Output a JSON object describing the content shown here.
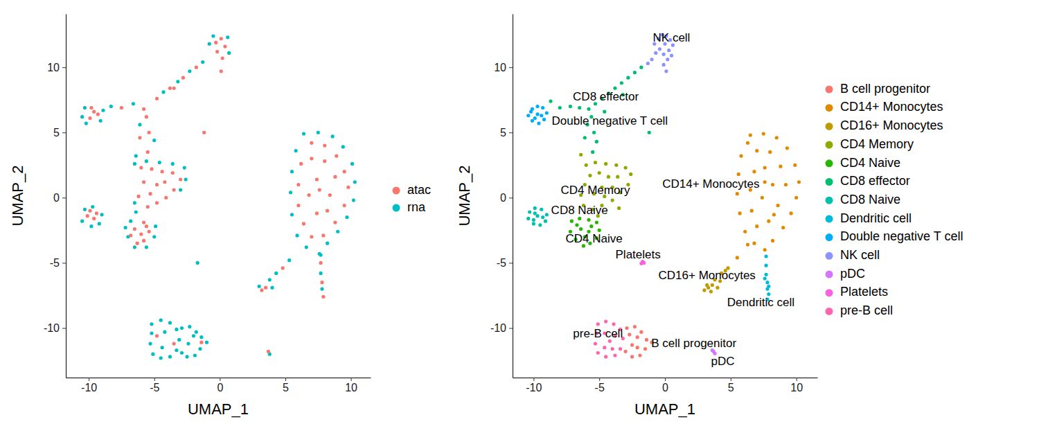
{
  "chart_data": [
    {
      "type": "scatter",
      "xlabel": "UMAP_1",
      "ylabel": "UMAP_2",
      "xlim": [
        -11.75,
        11.5
      ],
      "ylim": [
        -13.8,
        14.1
      ],
      "xticks": [
        -10,
        -5,
        0,
        5,
        10
      ],
      "yticks": [
        -10,
        -5,
        0,
        5,
        10
      ],
      "legend": "right",
      "series": [
        {
          "name": "atac",
          "color": "#F8766D",
          "x": [
            -0.3,
            0.1,
            0.4,
            -0.2,
            0.2,
            0.1,
            -1.8,
            -2.8,
            -3.8,
            -4.8,
            -5.8,
            -5.6,
            -5.4,
            -5.5,
            -6.1,
            -3.5,
            -9.8,
            -9.3,
            -9.9,
            -9.6,
            -7.5,
            -6.0,
            -5.2,
            -4.4,
            -3.6,
            -3.0,
            -3.5,
            -4.1,
            -4.8,
            -5.5,
            -6.2,
            -5.8,
            -4.8,
            -4.2,
            -5.3,
            -9.9,
            -9.4,
            -9.6,
            -10.1,
            -5.8,
            -5.4,
            -5.8,
            -6.3,
            -6.0,
            -5.6,
            -6.5,
            -6.8,
            7.0,
            8.0,
            8.9,
            9.5,
            9.8,
            9.5,
            8.8,
            7.9,
            7.0,
            6.4,
            6.0,
            6.0,
            6.2,
            7.0,
            8.0,
            8.8,
            8.4,
            7.4,
            6.8,
            7.4,
            8.2,
            7.6,
            4.8,
            3.5,
            3.2,
            7.7,
            7.8,
            7.9,
            3.7,
            -4.8,
            -3.5,
            -1.4,
            -1.2
          ],
          "y": [
            11.9,
            12.2,
            11.6,
            11.2,
            10.7,
            9.7,
            10.0,
            9.2,
            8.4,
            7.6,
            6.8,
            6.2,
            5.0,
            3.5,
            4.6,
            8.4,
            6.9,
            6.4,
            6.1,
            6.6,
            6.9,
            2.3,
            2.2,
            2.0,
            1.9,
            1.4,
            0.6,
            0.0,
            -0.4,
            -0.7,
            0.1,
            1.2,
            1.0,
            1.2,
            0.3,
            -1.0,
            -1.2,
            -1.6,
            -1.4,
            -1.9,
            -2.6,
            -3.3,
            -3.5,
            -2.8,
            -2.2,
            -2.4,
            -2.9,
            4.2,
            4.0,
            3.2,
            2.0,
            0.8,
            -0.6,
            -1.9,
            -2.9,
            -3.0,
            -2.0,
            -0.6,
            1.0,
            2.6,
            3.0,
            2.8,
            1.6,
            0.2,
            -1.2,
            0.2,
            1.4,
            -1.0,
            0.6,
            -5.4,
            -6.9,
            -7.1,
            -5.0,
            -6.5,
            -7.6,
            -11.8,
            -10.6,
            -11.2,
            -11.1,
            5.0
          ]
        },
        {
          "name": "rna",
          "color": "#00BFC4",
          "x": [
            -0.8,
            -0.5,
            0.6,
            0.7,
            -1.3,
            -2.3,
            -3.2,
            -4.3,
            -6.6,
            -8.3,
            -10.3,
            -10.5,
            -10.2,
            -9.1,
            -8.9,
            -6.1,
            -5.0,
            -6.4,
            -6.5,
            -5.6,
            -4.6,
            -3.6,
            -2.7,
            -2.6,
            -3.0,
            -6.5,
            -6.4,
            -6.8,
            -7.2,
            -7.0,
            -6.5,
            -5.6,
            -5.0,
            -4.9,
            -10.5,
            -10.3,
            -9.7,
            -9.0,
            -9.2,
            -9.8,
            6.4,
            7.5,
            8.6,
            9.4,
            10.1,
            10.3,
            10.2,
            9.7,
            9.0,
            8.2,
            7.6,
            6.6,
            5.9,
            5.5,
            5.4,
            5.5,
            5.8,
            4.3,
            3.8,
            3.0,
            4.0,
            5.3,
            7.7,
            7.7,
            7.8,
            -1.7,
            3.8,
            -5.2,
            -4.5,
            -3.8,
            -3.3,
            -3.1,
            -3.3,
            -3.8,
            -4.5,
            -5.1,
            -5.3,
            -5.2,
            -4.4,
            -4.2,
            -2.9,
            -2.3,
            -1.8,
            -1.4,
            -1.5,
            -1.9,
            -2.5,
            -2.9,
            -2.4,
            -2.0,
            -1.0
          ],
          "y": [
            11.8,
            12.4,
            12.3,
            11.1,
            10.4,
            9.7,
            8.9,
            8.1,
            7.2,
            7.0,
            6.9,
            6.2,
            5.7,
            5.9,
            6.7,
            5.6,
            4.4,
            3.2,
            2.6,
            2.8,
            2.7,
            2.6,
            2.3,
            1.4,
            0.6,
            -0.4,
            -1.1,
            -1.8,
            -2.3,
            -3.0,
            -3.8,
            -3.8,
            -3.0,
            -2.2,
            -1.8,
            -0.9,
            -0.7,
            -1.3,
            -2.0,
            -2.2,
            4.9,
            5.0,
            4.7,
            3.9,
            2.6,
            1.2,
            -0.2,
            -1.5,
            -2.6,
            -3.5,
            -4.3,
            -3.8,
            -2.9,
            -1.3,
            0.4,
            2.0,
            3.6,
            -5.8,
            -6.3,
            -6.8,
            -6.9,
            -4.8,
            -4.4,
            -5.8,
            -7.0,
            -5.0,
            -12.0,
            -9.7,
            -9.4,
            -9.6,
            -10.1,
            -10.9,
            -11.7,
            -12.2,
            -12.3,
            -12.0,
            -11.2,
            -10.4,
            -11.5,
            -10.3,
            -10.0,
            -9.9,
            -10.3,
            -10.7,
            -11.6,
            -12.1,
            -12.2,
            -11.9,
            -11.2,
            -10.6,
            -11.1
          ]
        }
      ]
    },
    {
      "type": "scatter",
      "xlabel": "UMAP_1",
      "ylabel": "UMAP_2",
      "xlim": [
        -11.6,
        11.6
      ],
      "ylim": [
        -13.8,
        14.1
      ],
      "xticks": [
        -10,
        -5,
        0,
        5,
        10
      ],
      "yticks": [
        -10,
        -5,
        0,
        5,
        10
      ],
      "legend": "right",
      "series": [
        {
          "name": "B cell progenitor",
          "color": "#F8766D",
          "x": [
            -2.9,
            -2.3,
            -1.8,
            -1.4,
            -1.5,
            -1.9,
            -2.5,
            -3.0,
            -2.5,
            -2.1,
            -2.1,
            -2.7,
            -1.0
          ],
          "y": [
            -10.0,
            -9.9,
            -10.3,
            -10.9,
            -11.6,
            -12.1,
            -12.2,
            -11.8,
            -11.3,
            -10.7,
            -11.5,
            -10.5,
            -11.1
          ]
        },
        {
          "name": "CD14+ Monocytes",
          "color": "#E18A00",
          "x": [
            6.5,
            7.5,
            8.5,
            9.3,
            9.9,
            10.2,
            10.0,
            9.6,
            9.0,
            8.2,
            7.6,
            6.8,
            6.1,
            5.7,
            5.5,
            5.6,
            5.8,
            6.3,
            7.0,
            8.0,
            8.8,
            9.2,
            8.6,
            7.9,
            7.0,
            6.6,
            6.5,
            6.8,
            7.6,
            8.2,
            7.4,
            7.6,
            8.3,
            6.3,
            5.5
          ],
          "y": [
            4.8,
            4.9,
            4.6,
            3.8,
            2.5,
            1.2,
            0.0,
            -1.2,
            -2.3,
            -3.3,
            -4.0,
            -3.5,
            -2.6,
            -1.2,
            0.3,
            1.8,
            3.2,
            4.2,
            3.6,
            3.5,
            2.4,
            1.0,
            -0.6,
            -1.8,
            -2.2,
            -1.0,
            0.6,
            2.0,
            2.3,
            1.0,
            0.0,
            1.2,
            -1.3,
            -3.6,
            -4.6
          ]
        },
        {
          "name": "CD16+ Monocytes",
          "color": "#BE9C00",
          "x": [
            4.8,
            4.3,
            3.8,
            3.2,
            3.0,
            3.5,
            4.0,
            3.6,
            4.6,
            3.3,
            4.2
          ],
          "y": [
            -5.4,
            -5.8,
            -6.3,
            -6.7,
            -7.1,
            -7.2,
            -6.9,
            -6.7,
            -5.6,
            -6.9,
            -6.4
          ]
        },
        {
          "name": "CD4 Memory",
          "color": "#8CAB00",
          "x": [
            -6.0,
            -5.3,
            -4.5,
            -3.7,
            -3.0,
            -2.6,
            -2.8,
            -3.4,
            -4.0,
            -4.8,
            -5.5,
            -6.2,
            -6.4,
            -6.1,
            -5.7,
            -5.0,
            -4.3,
            -3.6,
            -4.0,
            -4.8,
            -5.4,
            -4.6,
            -3.5,
            -5.1,
            -6.4
          ],
          "y": [
            2.5,
            2.7,
            2.6,
            2.5,
            2.3,
            1.8,
            1.0,
            0.4,
            -0.2,
            -0.6,
            -0.9,
            -0.6,
            0.2,
            1.0,
            1.7,
            1.9,
            1.6,
            1.6,
            0.8,
            0.8,
            0.3,
            0.1,
            -0.8,
            -1.4,
            3.3
          ]
        },
        {
          "name": "CD4 Naive",
          "color": "#24B700",
          "x": [
            -7.1,
            -6.5,
            -5.8,
            -5.2,
            -5.0,
            -5.2,
            -5.7,
            -6.2,
            -6.8,
            -7.2,
            -6.4,
            -5.8,
            -6.1,
            -6.7,
            -5.6
          ],
          "y": [
            -1.8,
            -1.6,
            -1.7,
            -1.9,
            -2.5,
            -3.1,
            -3.5,
            -3.7,
            -3.2,
            -2.6,
            -2.4,
            -2.6,
            -3.0,
            -2.1,
            -2.2
          ]
        },
        {
          "name": "CD8 effector",
          "color": "#00BE70",
          "x": [
            -1.8,
            -2.3,
            -2.8,
            -3.3,
            -3.8,
            -4.3,
            -4.8,
            -5.3,
            -5.8,
            -6.5,
            -7.2,
            -8.0,
            -5.6,
            -5.9,
            -5.4,
            -5.2,
            -5.5,
            -6.1,
            -4.6,
            -3.2,
            -1.2,
            -8.7
          ],
          "y": [
            10.0,
            9.6,
            9.2,
            8.8,
            8.4,
            8.0,
            7.6,
            7.2,
            6.8,
            6.9,
            7.0,
            6.9,
            6.2,
            5.6,
            5.0,
            4.3,
            3.5,
            4.6,
            6.6,
            7.9,
            5.0,
            7.4
          ]
        },
        {
          "name": "CD8 Naive",
          "color": "#00C1AB",
          "x": [
            -10.3,
            -9.9,
            -9.4,
            -9.0,
            -9.1,
            -9.5,
            -10.0,
            -10.4,
            -9.7,
            -9.3,
            -9.9,
            -10.0
          ],
          "y": [
            -1.1,
            -0.8,
            -0.9,
            -1.3,
            -1.8,
            -2.1,
            -2.0,
            -1.6,
            -1.4,
            -1.5,
            -1.2,
            -1.7
          ]
        },
        {
          "name": "Dendritic cell",
          "color": "#00BBDA",
          "x": [
            7.7,
            7.7,
            7.7,
            7.8,
            7.8,
            7.9,
            7.8,
            7.6,
            7.9
          ],
          "y": [
            -4.5,
            -5.2,
            -5.9,
            -6.5,
            -7.0,
            -7.4,
            -7.8,
            -6.2,
            -6.8
          ]
        },
        {
          "name": "Double negative T cell",
          "color": "#00ACFC",
          "x": [
            -10.1,
            -9.7,
            -9.3,
            -9.0,
            -9.2,
            -9.6,
            -10.1,
            -10.4,
            -9.7,
            -9.4,
            -9.9,
            -10.2
          ],
          "y": [
            6.8,
            7.0,
            6.9,
            6.5,
            6.0,
            5.7,
            5.9,
            6.3,
            6.4,
            6.3,
            6.1,
            6.6
          ]
        },
        {
          "name": "NK cell",
          "color": "#8B93FF",
          "x": [
            -0.8,
            -0.5,
            -0.2,
            0.1,
            0.4,
            0.6,
            0.3,
            -0.1,
            -0.4,
            0.0,
            -0.7,
            0.5,
            0.2,
            -0.1,
            0.1,
            -1.3,
            -1.0
          ],
          "y": [
            11.8,
            12.2,
            12.5,
            12.4,
            12.1,
            11.7,
            11.3,
            11.0,
            11.4,
            11.8,
            11.1,
            10.9,
            10.6,
            10.2,
            9.7,
            10.3,
            10.6
          ]
        },
        {
          "name": "pDC",
          "color": "#D575FE",
          "x": [
            3.6,
            3.7,
            3.8
          ],
          "y": [
            -11.7,
            -11.8,
            -11.95
          ]
        },
        {
          "name": "Platelets",
          "color": "#F962DD",
          "x": [
            -1.7,
            -1.6,
            -1.8
          ],
          "y": [
            -4.9,
            -5.0,
            -5.05
          ]
        },
        {
          "name": "pre-B cell",
          "color": "#FF65AC",
          "x": [
            -5.1,
            -4.5,
            -3.9,
            -3.4,
            -3.2,
            -3.4,
            -3.8,
            -4.5,
            -5.1,
            -5.3,
            -5.2,
            -4.6,
            -4.2,
            -4.6,
            -3.8,
            -4.0
          ],
          "y": [
            -9.7,
            -9.5,
            -9.7,
            -10.1,
            -10.8,
            -11.6,
            -12.1,
            -12.2,
            -11.9,
            -11.2,
            -10.4,
            -10.4,
            -11.0,
            -11.5,
            -10.6,
            -11.6
          ]
        }
      ],
      "annotations": [
        {
          "text": "NK cell",
          "x": 0.5,
          "y": 12.2
        },
        {
          "text": "CD8 effector",
          "x": -4.5,
          "y": 7.7
        },
        {
          "text": "Double negative T cell",
          "x": -4.2,
          "y": 5.85
        },
        {
          "text": "CD14+ Monocytes",
          "x": 3.5,
          "y": 1.0
        },
        {
          "text": "CD4 Memory",
          "x": -5.3,
          "y": 0.5
        },
        {
          "text": "CD8 Naive",
          "x": -6.5,
          "y": -1.0
        },
        {
          "text": "CD4 Naive",
          "x": -5.4,
          "y": -3.2
        },
        {
          "text": "Platelets",
          "x": -2.05,
          "y": -4.4
        },
        {
          "text": "CD16+ Monocytes",
          "x": 3.2,
          "y": -6.0
        },
        {
          "text": "Dendritic cell",
          "x": 7.3,
          "y": -8.1
        },
        {
          "text": "pre-B cell",
          "x": -5.1,
          "y": -10.5
        },
        {
          "text": "B cell progenitor",
          "x": 2.2,
          "y": -11.2
        },
        {
          "text": "pDC",
          "x": 4.4,
          "y": -12.6
        }
      ]
    }
  ]
}
